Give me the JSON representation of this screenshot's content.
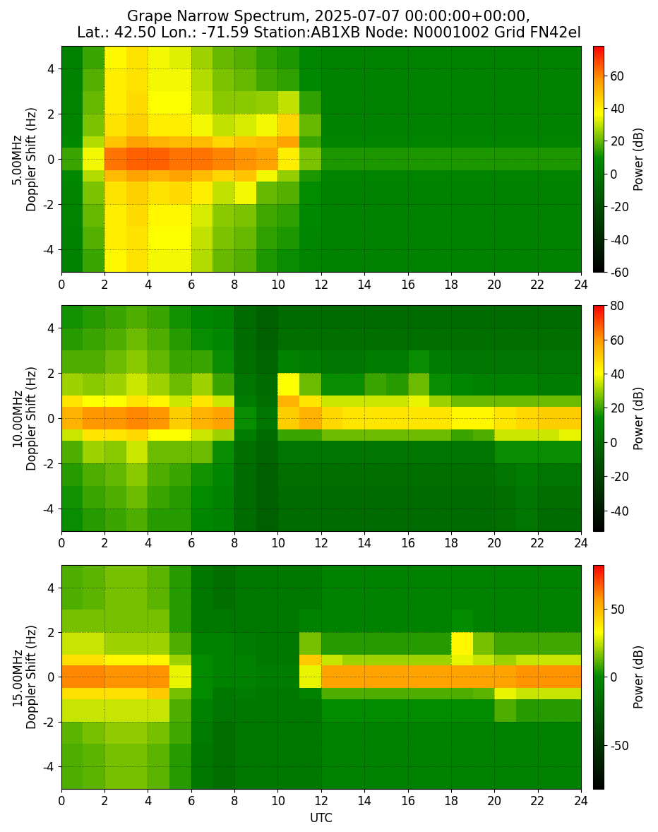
{
  "title": "Grape Narrow Spectrum, 2025-07-07 00:00:00+00:00,\nLat.: 42.50 Lon.: -71.59 Station:AB1XB Node: N0001002 Grid FN42el",
  "chart_data": [
    {
      "type": "heatmap",
      "ylabel": "5.00MHz\nDoppler Shift (Hz)",
      "grid": true,
      "xlim": [
        0,
        24
      ],
      "ylim": [
        -5,
        5
      ],
      "xticks": [
        0,
        2,
        4,
        6,
        8,
        10,
        12,
        14,
        16,
        18,
        20,
        22,
        24
      ],
      "yticks": [
        -4,
        -2,
        0,
        2,
        4
      ],
      "x_edges": [
        0,
        1,
        2,
        3,
        4,
        5,
        6,
        7,
        8,
        9,
        10,
        11,
        12,
        13,
        14,
        15,
        16,
        17,
        18,
        19,
        20,
        21,
        22,
        23,
        24
      ],
      "y_edges": [
        -5,
        -4,
        -3,
        -2,
        -1,
        -0.5,
        0.5,
        1,
        2,
        3,
        4,
        5
      ],
      "cells": [
        [
          5,
          15,
          38,
          42,
          35,
          35,
          28,
          20,
          18,
          12,
          10,
          6,
          5,
          5,
          5,
          5,
          5,
          5,
          5,
          5,
          5,
          5,
          5,
          5
        ],
        [
          5,
          18,
          40,
          42,
          36,
          36,
          30,
          22,
          20,
          14,
          12,
          7,
          5,
          5,
          5,
          5,
          5,
          5,
          5,
          5,
          5,
          5,
          5,
          5
        ],
        [
          6,
          20,
          40,
          44,
          38,
          38,
          32,
          24,
          22,
          16,
          14,
          8,
          5,
          5,
          5,
          5,
          5,
          5,
          5,
          5,
          5,
          5,
          5,
          5
        ],
        [
          6,
          22,
          42,
          46,
          42,
          44,
          40,
          30,
          35,
          20,
          18,
          9,
          5,
          5,
          5,
          5,
          5,
          5,
          5,
          5,
          5,
          5,
          5,
          5
        ],
        [
          8,
          28,
          50,
          55,
          52,
          55,
          50,
          45,
          48,
          35,
          25,
          12,
          6,
          6,
          6,
          6,
          6,
          6,
          6,
          6,
          6,
          6,
          6,
          6
        ],
        [
          15,
          35,
          62,
          65,
          65,
          62,
          62,
          60,
          58,
          55,
          40,
          22,
          12,
          12,
          12,
          12,
          12,
          12,
          12,
          12,
          12,
          12,
          12,
          12
        ],
        [
          8,
          28,
          48,
          55,
          52,
          50,
          50,
          45,
          48,
          50,
          55,
          15,
          6,
          6,
          6,
          6,
          6,
          6,
          6,
          6,
          6,
          6,
          6,
          6
        ],
        [
          6,
          22,
          42,
          46,
          40,
          40,
          35,
          30,
          32,
          35,
          45,
          20,
          5,
          5,
          5,
          5,
          5,
          5,
          5,
          5,
          5,
          5,
          5,
          5
        ],
        [
          6,
          20,
          40,
          44,
          36,
          36,
          30,
          24,
          24,
          25,
          30,
          14,
          5,
          5,
          5,
          5,
          5,
          5,
          5,
          5,
          5,
          5,
          5,
          5
        ],
        [
          5,
          18,
          40,
          42,
          35,
          35,
          28,
          22,
          20,
          16,
          14,
          8,
          5,
          5,
          5,
          5,
          5,
          5,
          5,
          5,
          5,
          5,
          5,
          5
        ],
        [
          5,
          15,
          38,
          42,
          35,
          33,
          26,
          20,
          18,
          14,
          12,
          7,
          5,
          5,
          5,
          5,
          5,
          5,
          5,
          5,
          5,
          5,
          5,
          5
        ]
      ],
      "colorbar_label": "Power (dB)",
      "colorbar_range": [
        -60,
        78
      ],
      "colorbar_ticks": [
        -60,
        -40,
        -20,
        0,
        20,
        40,
        60
      ]
    },
    {
      "type": "heatmap",
      "ylabel": "10.00MHz\nDoppler Shift (Hz)",
      "grid": true,
      "xlim": [
        0,
        24
      ],
      "ylim": [
        -5,
        5
      ],
      "xticks": [
        0,
        2,
        4,
        6,
        8,
        10,
        12,
        14,
        16,
        18,
        20,
        22,
        24
      ],
      "yticks": [
        -4,
        -2,
        0,
        2,
        4
      ],
      "x_edges": [
        0,
        1,
        2,
        3,
        4,
        5,
        6,
        7,
        8,
        9,
        10,
        11,
        12,
        13,
        14,
        15,
        16,
        17,
        18,
        19,
        20,
        21,
        22,
        23,
        24
      ],
      "y_edges": [
        -5,
        -4,
        -3,
        -2,
        -1,
        -0.5,
        0.5,
        1,
        2,
        3,
        4,
        5
      ],
      "cells": [
        [
          15,
          18,
          20,
          22,
          18,
          18,
          12,
          10,
          0,
          -5,
          0,
          0,
          0,
          0,
          0,
          0,
          0,
          0,
          0,
          0,
          2,
          5,
          0,
          0
        ],
        [
          16,
          20,
          22,
          25,
          20,
          18,
          14,
          10,
          0,
          -5,
          0,
          0,
          0,
          0,
          0,
          0,
          0,
          0,
          0,
          0,
          2,
          5,
          2,
          2
        ],
        [
          18,
          22,
          24,
          28,
          22,
          20,
          16,
          12,
          0,
          -5,
          2,
          2,
          2,
          2,
          2,
          2,
          2,
          2,
          2,
          2,
          5,
          8,
          5,
          5
        ],
        [
          22,
          30,
          28,
          35,
          25,
          25,
          25,
          15,
          2,
          -3,
          5,
          5,
          5,
          5,
          5,
          5,
          5,
          5,
          5,
          5,
          15,
          15,
          15,
          15
        ],
        [
          35,
          45,
          45,
          48,
          40,
          40,
          35,
          30,
          8,
          0,
          20,
          20,
          25,
          25,
          25,
          25,
          25,
          25,
          20,
          22,
          35,
          35,
          35,
          38
        ],
        [
          55,
          60,
          60,
          62,
          60,
          50,
          55,
          58,
          15,
          5,
          50,
          55,
          48,
          45,
          45,
          45,
          45,
          45,
          42,
          42,
          45,
          48,
          50,
          50
        ],
        [
          45,
          40,
          40,
          45,
          42,
          35,
          45,
          35,
          8,
          2,
          55,
          45,
          35,
          35,
          35,
          35,
          38,
          30,
          25,
          25,
          25,
          25,
          25,
          25
        ],
        [
          30,
          28,
          30,
          35,
          30,
          25,
          30,
          20,
          5,
          0,
          40,
          25,
          15,
          15,
          20,
          18,
          25,
          15,
          12,
          10,
          10,
          10,
          8,
          8
        ],
        [
          22,
          22,
          25,
          28,
          24,
          20,
          20,
          15,
          2,
          -3,
          10,
          8,
          5,
          5,
          8,
          8,
          15,
          8,
          5,
          5,
          5,
          5,
          5,
          5
        ],
        [
          18,
          20,
          22,
          25,
          22,
          18,
          15,
          12,
          0,
          -5,
          2,
          2,
          2,
          2,
          2,
          2,
          2,
          2,
          2,
          2,
          2,
          2,
          2,
          2
        ],
        [
          16,
          18,
          20,
          22,
          20,
          16,
          12,
          10,
          0,
          -5,
          0,
          0,
          0,
          0,
          0,
          0,
          0,
          0,
          0,
          0,
          0,
          0,
          0,
          0
        ]
      ],
      "colorbar_label": "Power (dB)",
      "colorbar_range": [
        -52,
        80
      ],
      "colorbar_ticks": [
        -40,
        -20,
        0,
        20,
        40,
        60,
        80
      ]
    },
    {
      "type": "heatmap",
      "ylabel": "15.00MHz\nDoppler Shift (Hz)",
      "xlabel": "UTC",
      "grid": true,
      "xlim": [
        0,
        24
      ],
      "ylim": [
        -5,
        5
      ],
      "xticks": [
        0,
        2,
        4,
        6,
        8,
        10,
        12,
        14,
        16,
        18,
        20,
        22,
        24
      ],
      "yticks": [
        -4,
        -2,
        0,
        2,
        4
      ],
      "x_edges": [
        0,
        1,
        2,
        3,
        4,
        5,
        6,
        7,
        8,
        9,
        10,
        11,
        12,
        13,
        14,
        15,
        16,
        17,
        18,
        19,
        20,
        21,
        22,
        23,
        24
      ],
      "y_edges": [
        -5,
        -4,
        -3,
        -2,
        -1,
        -0.5,
        0.5,
        1,
        2,
        3,
        4,
        5
      ],
      "cells": [
        [
          10,
          12,
          15,
          15,
          12,
          5,
          -10,
          -15,
          -10,
          -10,
          -10,
          -10,
          -5,
          -5,
          -5,
          -5,
          -5,
          -5,
          -5,
          -5,
          -5,
          -5,
          -5,
          -5
        ],
        [
          10,
          12,
          15,
          15,
          12,
          5,
          -10,
          -15,
          -10,
          -10,
          -10,
          -10,
          -5,
          -5,
          -5,
          -5,
          -5,
          -5,
          -5,
          -5,
          -5,
          -5,
          -5,
          -5
        ],
        [
          12,
          15,
          18,
          18,
          15,
          8,
          -8,
          -15,
          -10,
          -10,
          -10,
          -10,
          -5,
          -5,
          -5,
          -5,
          -5,
          -5,
          -5,
          -5,
          -5,
          -5,
          -5,
          -5
        ],
        [
          25,
          25,
          25,
          25,
          25,
          10,
          -5,
          -12,
          -10,
          -10,
          -10,
          -10,
          0,
          0,
          0,
          0,
          0,
          0,
          0,
          0,
          10,
          5,
          5,
          5
        ],
        [
          40,
          40,
          40,
          40,
          45,
          15,
          0,
          -10,
          -8,
          -10,
          -10,
          -5,
          10,
          10,
          10,
          10,
          10,
          10,
          10,
          12,
          30,
          25,
          25,
          25
        ],
        [
          60,
          60,
          58,
          58,
          58,
          30,
          0,
          -5,
          -5,
          -8,
          -8,
          30,
          55,
          55,
          55,
          55,
          55,
          55,
          55,
          55,
          55,
          58,
          58,
          58
        ],
        [
          40,
          40,
          35,
          35,
          35,
          20,
          0,
          -5,
          -5,
          -10,
          -10,
          45,
          25,
          20,
          20,
          20,
          20,
          20,
          30,
          25,
          20,
          25,
          25,
          25
        ],
        [
          25,
          25,
          20,
          20,
          20,
          10,
          -5,
          -5,
          -8,
          -10,
          -10,
          15,
          5,
          5,
          5,
          5,
          5,
          5,
          35,
          15,
          8,
          8,
          8,
          8
        ],
        [
          15,
          15,
          15,
          15,
          15,
          5,
          -10,
          -10,
          -10,
          -10,
          -10,
          -5,
          -5,
          -5,
          -5,
          -5,
          -5,
          -5,
          0,
          -5,
          -5,
          -5,
          -5,
          -5
        ],
        [
          10,
          12,
          15,
          15,
          12,
          5,
          -10,
          -15,
          -10,
          -10,
          -10,
          -10,
          -5,
          -5,
          -5,
          -5,
          -5,
          -5,
          -5,
          -5,
          -5,
          -5,
          -5,
          -5
        ],
        [
          10,
          12,
          15,
          15,
          12,
          5,
          -10,
          -15,
          -10,
          -10,
          -10,
          -10,
          -5,
          -5,
          -5,
          -5,
          -5,
          -5,
          -5,
          -5,
          -5,
          -5,
          -5,
          -5
        ]
      ],
      "colorbar_label": "Power (dB)",
      "colorbar_range": [
        -82,
        82
      ],
      "colorbar_ticks": [
        -50,
        0,
        50
      ]
    }
  ]
}
